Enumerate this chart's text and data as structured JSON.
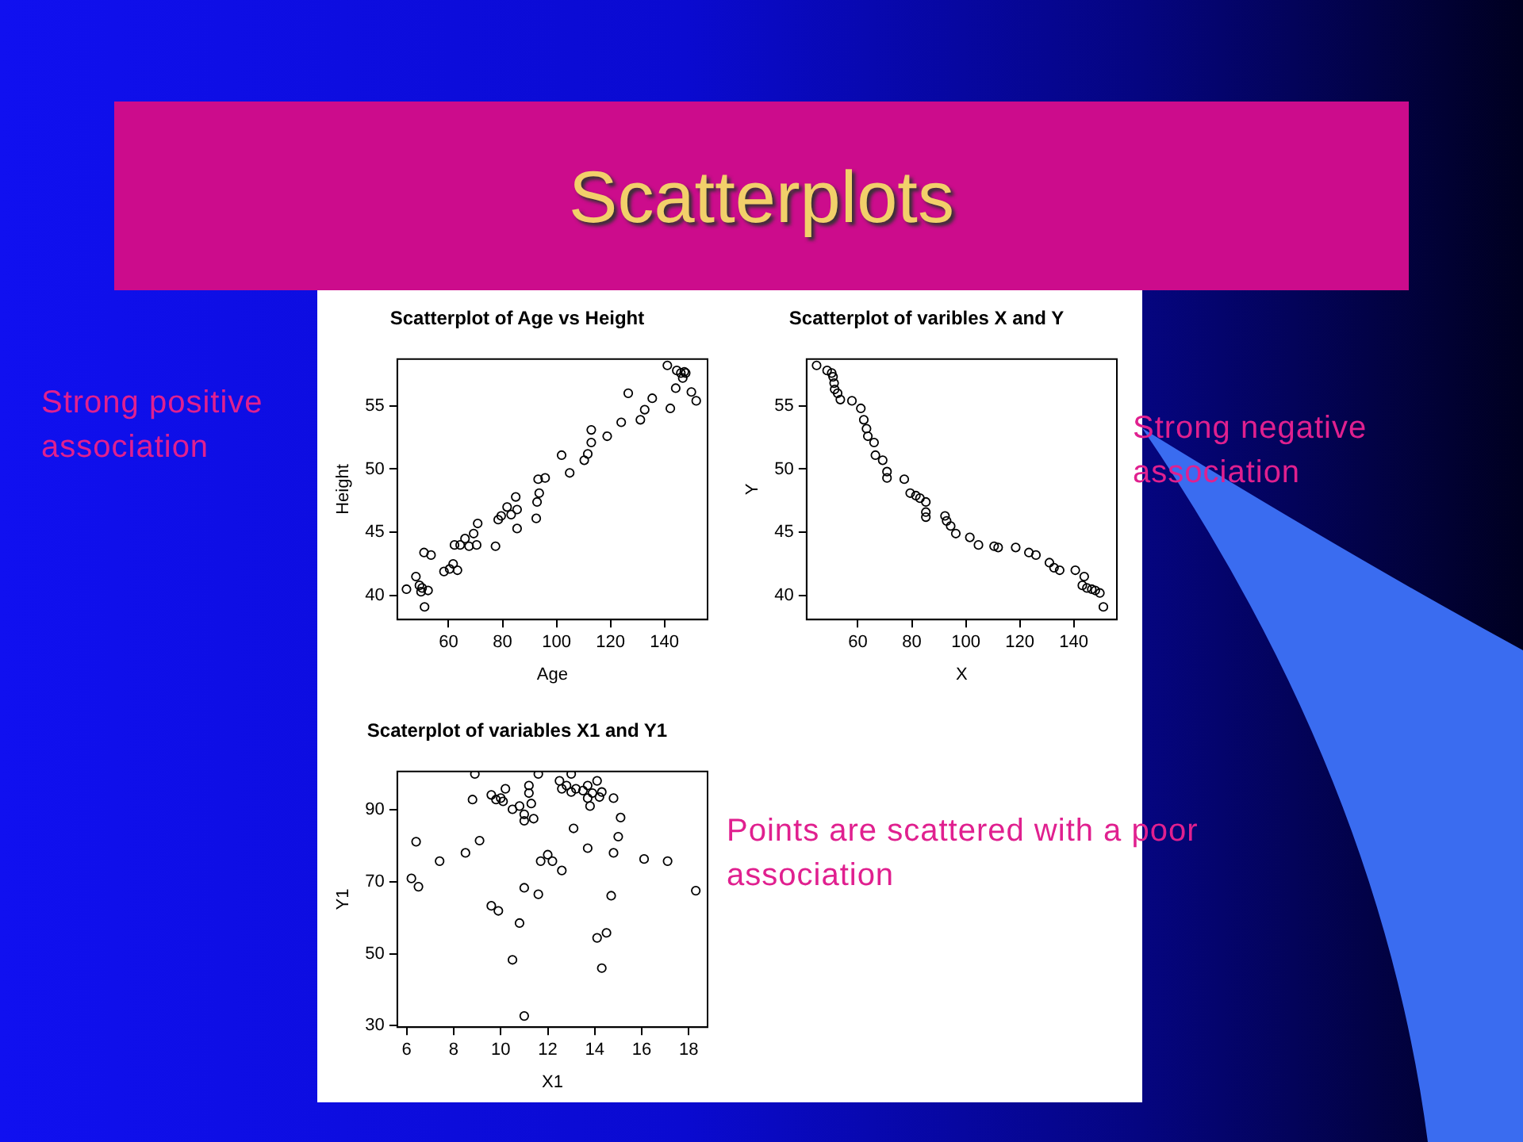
{
  "chart_data": [
    {
      "type": "other",
      "title": "Scatterplots"
    },
    {
      "type": "scatter",
      "title": "Scatterplot of Age vs Height",
      "xlabel": "Age",
      "ylabel": "Height",
      "marker": "circle",
      "grid": false,
      "legend": false,
      "annotations": [
        "Strong positive association"
      ],
      "xlim": [
        41,
        156
      ],
      "ylim": [
        38.1,
        58.7
      ],
      "xticks": [
        60,
        80,
        100,
        120,
        140
      ],
      "yticks": [
        40,
        45,
        50,
        55
      ],
      "x": [
        44.4,
        47.9,
        49.2,
        50.2,
        49.8,
        51.1,
        52.4,
        50.9,
        53.5,
        58.3,
        60.4,
        61.7,
        63.3,
        62.2,
        64.3,
        66.1,
        67.6,
        69.3,
        70.8,
        70.4,
        77.4,
        78.4,
        79.5,
        81.7,
        83.2,
        84.9,
        85.4,
        85.4,
        92.5,
        92.8,
        93.6,
        93.2,
        95.8,
        101.9,
        104.9,
        110.3,
        111.6,
        112.9,
        112.9,
        118.8,
        124.0,
        126.6,
        131.1,
        132.7,
        135.5,
        141.1,
        142.2,
        144.2,
        144.6,
        146.1,
        147.4,
        146.8,
        147.9,
        150.0,
        151.8
      ],
      "series": [
        {
          "color": "#000000",
          "values": [
            40.5,
            41.5,
            40.8,
            40.6,
            40.3,
            39.1,
            40.4,
            43.4,
            43.2,
            41.9,
            42.1,
            42.5,
            42.0,
            44.0,
            44.0,
            44.5,
            43.9,
            44.9,
            45.7,
            44.0,
            43.9,
            46.0,
            46.3,
            47.0,
            46.4,
            47.8,
            46.8,
            45.3,
            46.1,
            47.4,
            48.1,
            49.2,
            49.3,
            51.1,
            49.7,
            50.7,
            51.2,
            52.1,
            53.1,
            52.6,
            53.7,
            56.0,
            53.9,
            54.7,
            55.6,
            58.2,
            54.8,
            56.4,
            57.8,
            57.6,
            57.7,
            57.2,
            57.6,
            56.1,
            55.4
          ]
        }
      ]
    },
    {
      "type": "scatter",
      "title": "Scatterplot of varibles X and Y",
      "xlabel": "X",
      "ylabel": "Y",
      "marker": "circle",
      "grid": false,
      "legend": false,
      "annotations": [
        "Strong negative association"
      ],
      "xlim": [
        41,
        156
      ],
      "ylim": [
        38.1,
        58.7
      ],
      "xticks": [
        60,
        80,
        100,
        120,
        140
      ],
      "yticks": [
        40,
        45,
        50,
        55
      ],
      "x": [
        44.7,
        48.6,
        50.3,
        50.8,
        51.2,
        51.4,
        52.5,
        53.5,
        57.8,
        61.1,
        62.2,
        63.2,
        63.7,
        66.0,
        66.5,
        69.2,
        70.8,
        70.8,
        77.2,
        79.4,
        81.5,
        83.0,
        85.2,
        85.2,
        85.2,
        92.3,
        92.9,
        94.4,
        96.3,
        101.5,
        104.7,
        110.5,
        112.0,
        118.5,
        123.4,
        126.0,
        131.0,
        132.7,
        134.8,
        140.6,
        143.9,
        143.2,
        144.9,
        146.7,
        148.0,
        149.7,
        151.0
      ],
      "series": [
        {
          "color": "#000000",
          "values": [
            58.2,
            57.8,
            57.6,
            57.3,
            56.8,
            56.3,
            56.0,
            55.5,
            55.4,
            54.8,
            53.9,
            53.2,
            52.6,
            52.1,
            51.1,
            50.7,
            49.8,
            49.3,
            49.2,
            48.1,
            47.9,
            47.7,
            47.4,
            46.6,
            46.2,
            46.3,
            45.9,
            45.5,
            44.9,
            44.6,
            44.0,
            43.9,
            43.8,
            43.8,
            43.4,
            43.2,
            42.6,
            42.2,
            42.0,
            42.0,
            41.5,
            40.8,
            40.6,
            40.5,
            40.4,
            40.2,
            39.1
          ]
        }
      ]
    },
    {
      "type": "scatter",
      "title": "Scaterplot of variables X1 and Y1",
      "xlabel": "X1",
      "ylabel": "Y1",
      "marker": "circle",
      "grid": false,
      "legend": false,
      "annotations": [
        "Points are scattered with a poor association"
      ],
      "xlim": [
        5.6,
        18.8
      ],
      "ylim": [
        29.6,
        100.6
      ],
      "xticks": [
        6,
        8,
        10,
        12,
        14,
        16,
        18
      ],
      "yticks": [
        30,
        50,
        70,
        90
      ],
      "x": [
        6.2,
        6.5,
        6.4,
        7.4,
        8.5,
        8.9,
        8.8,
        9.1,
        9.6,
        9.6,
        9.9,
        9.8,
        10.0,
        10.1,
        10.2,
        10.5,
        10.5,
        10.8,
        10.8,
        11.0,
        11.0,
        11.0,
        11.0,
        11.2,
        11.2,
        11.3,
        11.4,
        11.6,
        11.6,
        11.7,
        12.0,
        12.2,
        12.6,
        12.5,
        12.6,
        12.8,
        13.0,
        13.0,
        13.1,
        13.2,
        13.5,
        13.7,
        13.7,
        13.7,
        13.8,
        13.9,
        14.1,
        14.1,
        14.2,
        14.3,
        14.3,
        14.5,
        14.7,
        14.8,
        14.8,
        15.0,
        15.1,
        16.1,
        17.1,
        18.3
      ],
      "series": [
        {
          "color": "#000000",
          "values": [
            70.9,
            68.6,
            81.1,
            75.7,
            78.0,
            99.9,
            92.8,
            81.4,
            94.1,
            63.3,
            61.9,
            92.8,
            93.2,
            92.3,
            95.8,
            90.1,
            48.3,
            91.0,
            58.5,
            88.7,
            86.9,
            68.3,
            32.7,
            96.7,
            94.6,
            91.7,
            87.5,
            66.5,
            99.9,
            75.7,
            77.5,
            75.7,
            73.1,
            98.0,
            95.8,
            96.7,
            99.9,
            94.9,
            84.8,
            95.8,
            95.3,
            93.2,
            79.3,
            96.7,
            91.0,
            94.6,
            54.4,
            98.0,
            93.5,
            94.9,
            46.0,
            55.8,
            66.1,
            93.2,
            78.0,
            82.5,
            87.8,
            76.3,
            75.7,
            67.5
          ]
        }
      ]
    }
  ]
}
